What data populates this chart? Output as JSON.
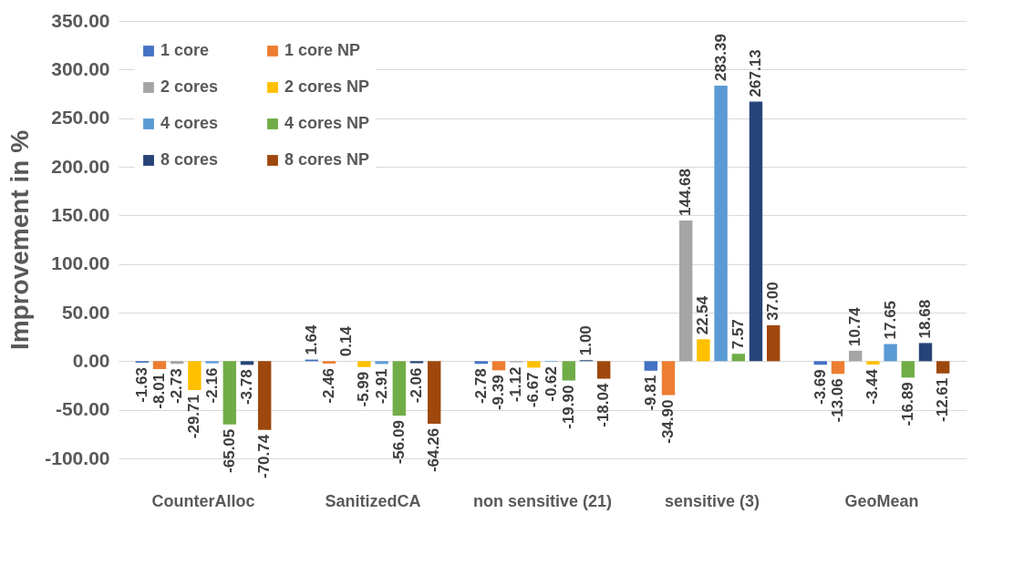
{
  "chart_data": {
    "type": "bar",
    "ylabel": "Improvement in %",
    "categories": [
      "CounterAlloc",
      "SanitizedCA",
      "non sensitive (21)",
      "sensitive (3)",
      "GeoMean"
    ],
    "series": [
      {
        "name": "1 core",
        "color": "#4472c4",
        "values": [
          -1.63,
          1.64,
          -2.78,
          -9.81,
          -3.69
        ],
        "value_labels": [
          "-1.63",
          "1.64",
          "-2.78",
          "-9.81",
          "-3.69"
        ]
      },
      {
        "name": "1 core NP",
        "color": "#ed7d31",
        "values": [
          -8.01,
          -2.46,
          -9.39,
          -34.9,
          -13.06
        ],
        "value_labels": [
          "-8.01",
          "-2.46",
          "-9.39",
          "-34.90",
          "-13.06"
        ]
      },
      {
        "name": "2 cores",
        "color": "#a5a5a5",
        "values": [
          -2.73,
          0.14,
          -1.12,
          144.68,
          10.74
        ],
        "value_labels": [
          "-2.73",
          "0.14",
          "-1.12",
          "144.68",
          "10.74"
        ]
      },
      {
        "name": "2 cores NP",
        "color": "#ffc000",
        "values": [
          -29.71,
          -5.99,
          -6.67,
          22.54,
          -3.44
        ],
        "value_labels": [
          "-29.71",
          "-5.99",
          "-6.67",
          "22.54",
          "-3.44"
        ]
      },
      {
        "name": "4 cores",
        "color": "#5b9bd5",
        "values": [
          -2.16,
          -2.91,
          -0.62,
          283.39,
          17.65
        ],
        "value_labels": [
          "-2.16",
          "-2.91",
          "-0.62",
          "283.39",
          "17.65"
        ]
      },
      {
        "name": "4 cores NP",
        "color": "#70ad47",
        "values": [
          -65.05,
          -56.09,
          -19.9,
          7.57,
          -16.89
        ],
        "value_labels": [
          "-65.05",
          "-56.09",
          "-19.90",
          "7.57",
          "-16.89"
        ]
      },
      {
        "name": "8 cores",
        "color": "#264478",
        "values": [
          -3.78,
          -2.06,
          1,
          267.13,
          18.68
        ],
        "value_labels": [
          "-3.78",
          "-2.06",
          "1.00",
          "267.13",
          "18.68"
        ]
      },
      {
        "name": "8 cores NP",
        "color": "#9e480e",
        "values": [
          -70.74,
          -64.26,
          -18.04,
          37,
          -12.61
        ],
        "value_labels": [
          "-70.74",
          "-64.26",
          "-18.04",
          "37.00",
          "-12.61"
        ]
      }
    ],
    "ylim": [
      -100,
      350
    ],
    "yticks": [
      {
        "value": -100,
        "label": "-100.00"
      },
      {
        "value": -50,
        "label": "-50.00"
      },
      {
        "value": 0,
        "label": "0.00"
      },
      {
        "value": 50,
        "label": "50.00"
      },
      {
        "value": 100,
        "label": "100.00"
      },
      {
        "value": 150,
        "label": "150.00"
      },
      {
        "value": 200,
        "label": "200.00"
      },
      {
        "value": 250,
        "label": "250.00"
      },
      {
        "value": 300,
        "label": "300.00"
      },
      {
        "value": 350,
        "label": "350.00"
      }
    ],
    "grid": "y",
    "legend": "top left"
  }
}
